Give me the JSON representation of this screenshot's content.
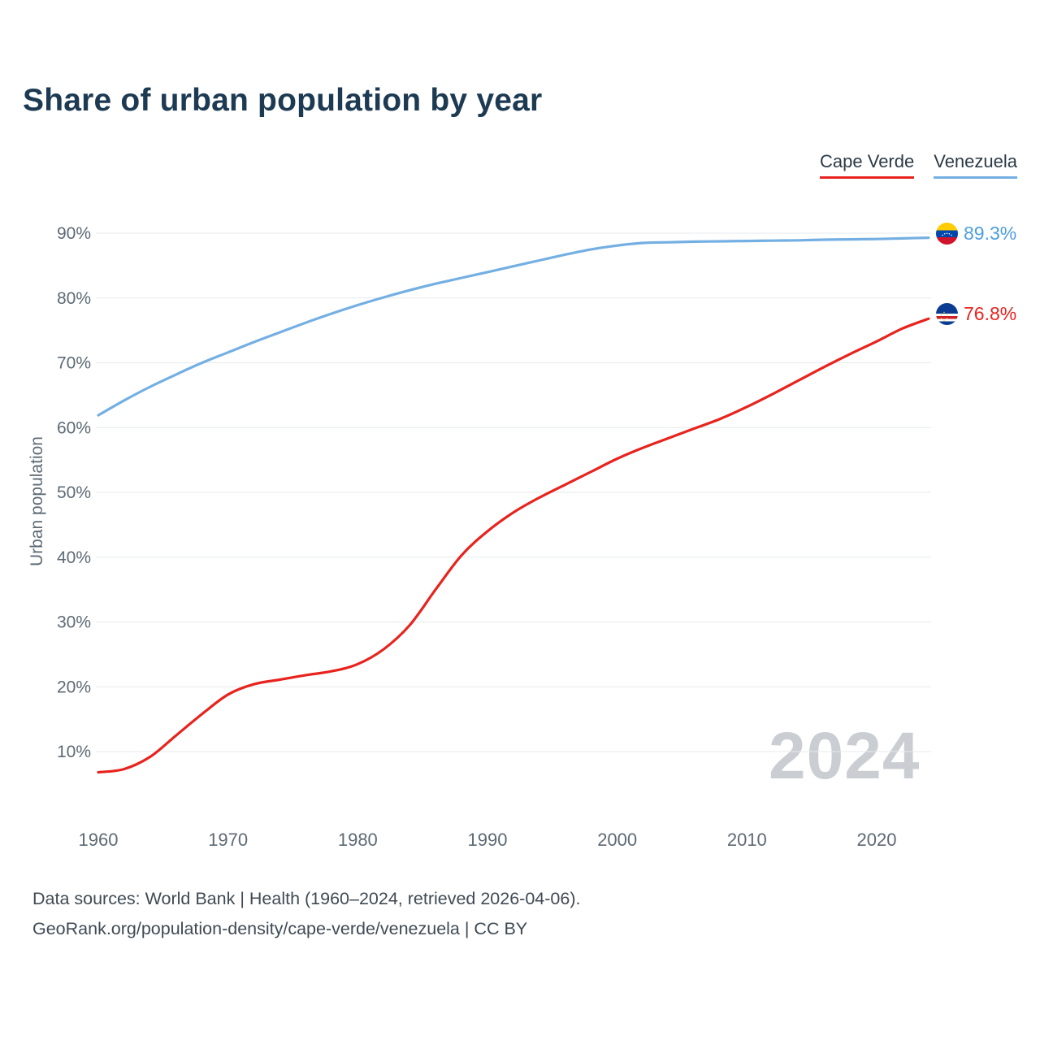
{
  "title": "Share of urban population by year",
  "legend": {
    "items": [
      {
        "label": "Cape Verde",
        "color": "#e8231e"
      },
      {
        "label": "Venezuela",
        "color": "#74afe3"
      }
    ]
  },
  "end_labels": {
    "venezuela": {
      "value": "89.3%",
      "color": "#4d9fe0"
    },
    "cape_verde": {
      "value": "76.8%",
      "color": "#e8231e"
    }
  },
  "watermark": "2024",
  "footer": {
    "line1": "Data sources: World Bank | Health (1960–2024, retrieved 2026-04-06).",
    "line2": "GeoRank.org/population-density/cape-verde/venezuela | CC BY"
  },
  "chart_data": {
    "type": "line",
    "title": "Share of urban population by year",
    "xlabel": "",
    "ylabel": "Urban population",
    "legend_position": "top-right",
    "grid": "horizontal",
    "xlim": [
      1960,
      2024
    ],
    "ylim": [
      5,
      92
    ],
    "x_ticks": [
      "1960",
      "1970",
      "1980",
      "1990",
      "2000",
      "2010",
      "2020"
    ],
    "y_ticks": [
      "10%",
      "20%",
      "30%",
      "40%",
      "50%",
      "60%",
      "70%",
      "80%",
      "90%"
    ],
    "y_tick_values": [
      10,
      20,
      30,
      40,
      50,
      60,
      70,
      80,
      90
    ],
    "x": [
      1960,
      1962,
      1964,
      1966,
      1968,
      1970,
      1972,
      1974,
      1976,
      1978,
      1980,
      1982,
      1984,
      1986,
      1988,
      1990,
      1992,
      1994,
      1996,
      1998,
      2000,
      2002,
      2004,
      2006,
      2008,
      2010,
      2012,
      2014,
      2016,
      2018,
      2020,
      2022,
      2024
    ],
    "series": [
      {
        "name": "Cape Verde",
        "color": "#e8231e",
        "values": [
          6.8,
          7.3,
          9.2,
          12.5,
          15.8,
          18.8,
          20.4,
          21.1,
          21.8,
          22.4,
          23.5,
          25.8,
          29.5,
          35.0,
          40.3,
          44.0,
          46.9,
          49.2,
          51.2,
          53.2,
          55.2,
          56.9,
          58.4,
          59.9,
          61.4,
          63.2,
          65.2,
          67.3,
          69.4,
          71.4,
          73.3,
          75.3,
          76.8
        ]
      },
      {
        "name": "Venezuela",
        "color": "#74afe3",
        "values": [
          61.9,
          64.2,
          66.3,
          68.2,
          70.0,
          71.6,
          73.2,
          74.7,
          76.2,
          77.6,
          78.9,
          80.1,
          81.2,
          82.2,
          83.1,
          84.0,
          84.9,
          85.8,
          86.7,
          87.5,
          88.1,
          88.5,
          88.6,
          88.7,
          88.75,
          88.8,
          88.85,
          88.9,
          89.0,
          89.05,
          89.1,
          89.2,
          89.3
        ]
      }
    ]
  }
}
